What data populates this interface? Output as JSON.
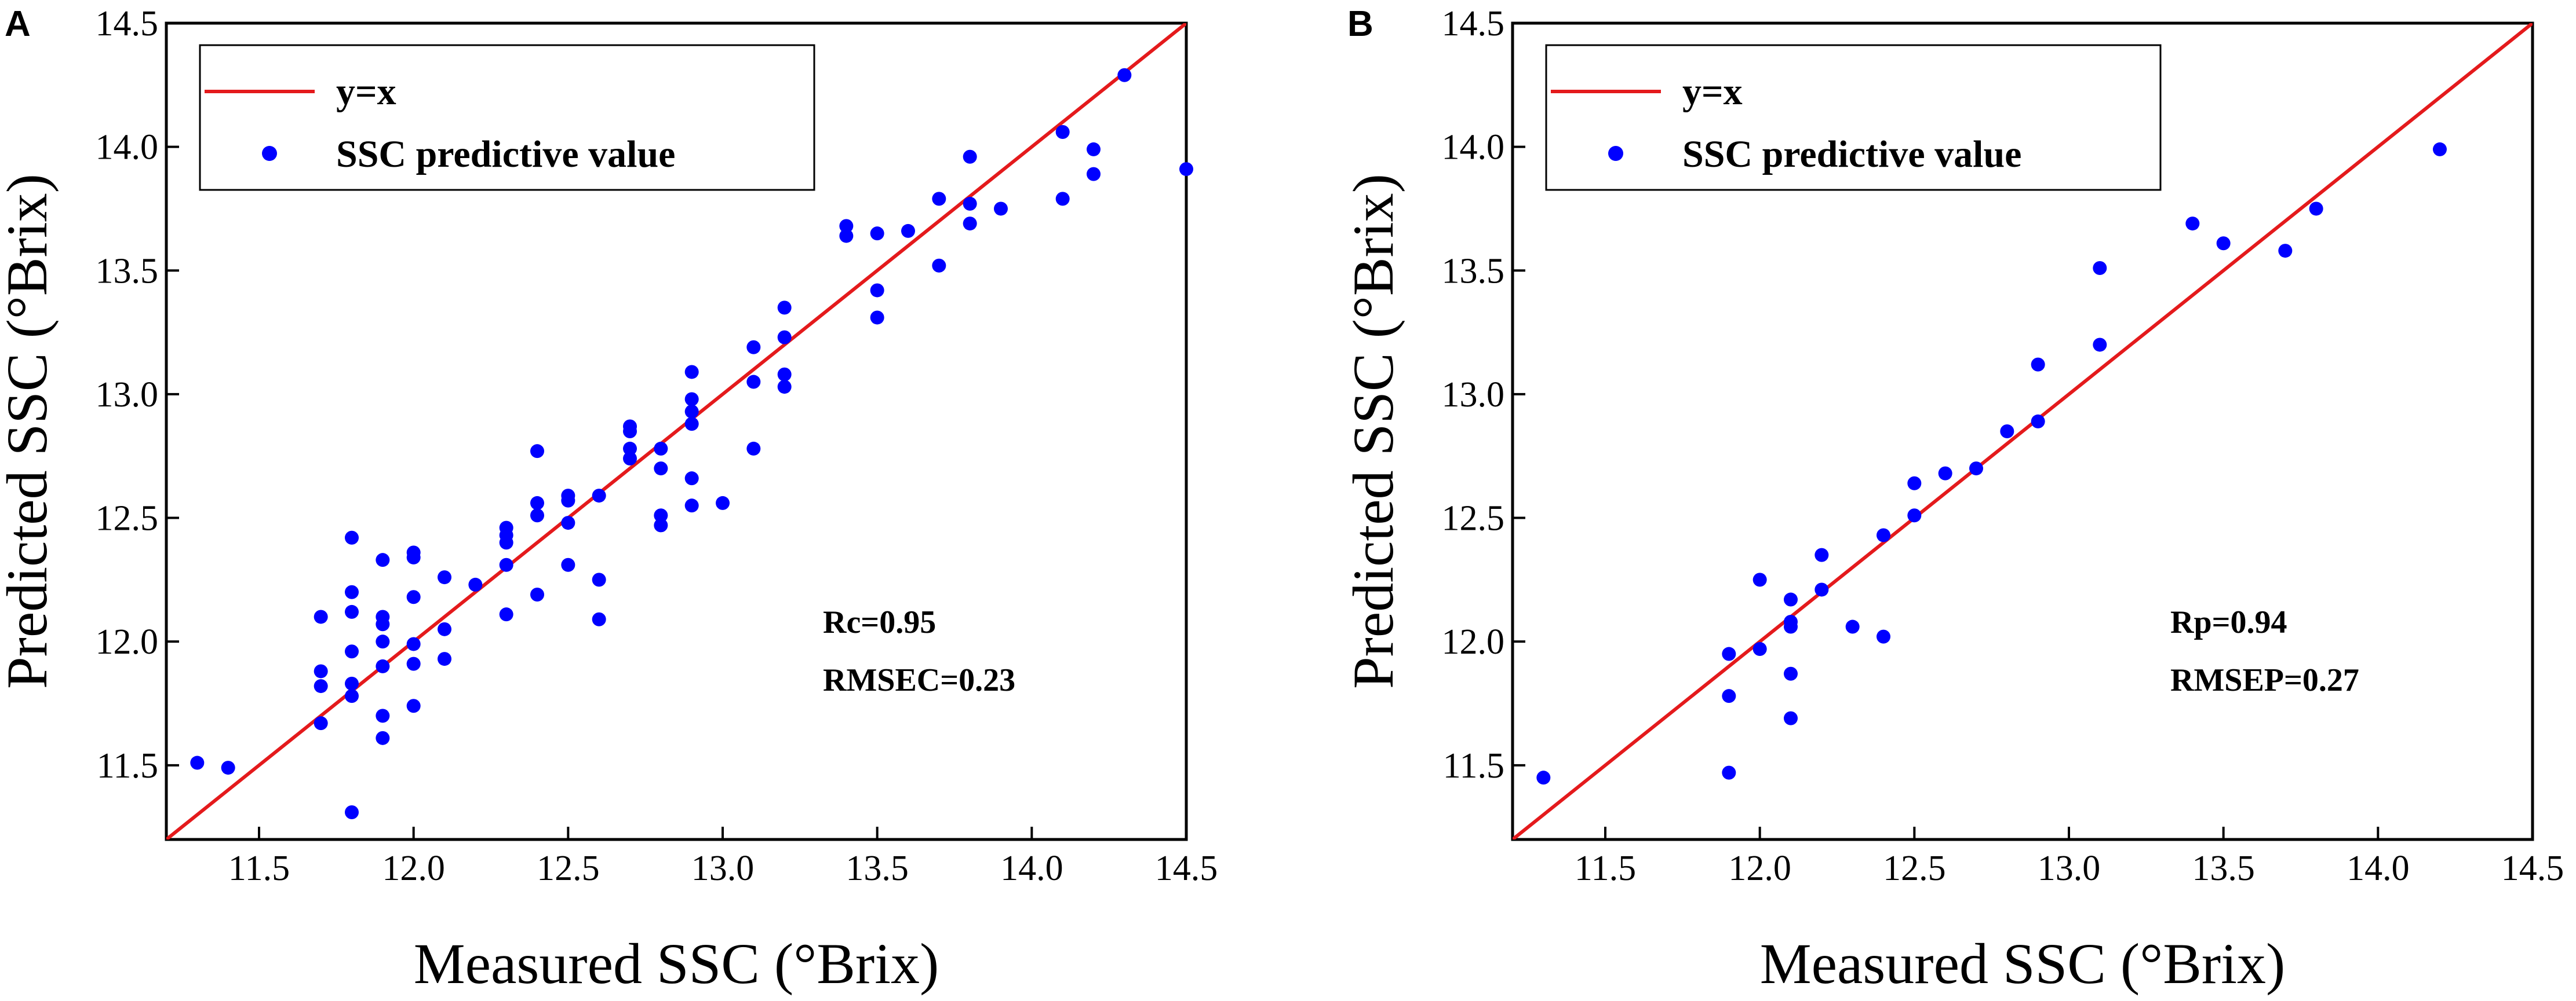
{
  "chart_data": [
    {
      "panel_label": "A",
      "type": "scatter",
      "xlabel": "Measured SSC (°Brix)",
      "ylabel": "Predicted SSC (°Brix)",
      "xlim": [
        11.2,
        14.5
      ],
      "ylim": [
        11.2,
        14.5
      ],
      "xticks": [
        "11.5",
        "12.0",
        "12.5",
        "13.0",
        "13.5",
        "14.0",
        "14.5"
      ],
      "yticks": [
        "11.5",
        "12.0",
        "12.5",
        "13.0",
        "13.5",
        "14.0",
        "14.5"
      ],
      "legend_position": "top-left",
      "series": [
        {
          "name": "y=x",
          "kind": "line",
          "color": "#e41a1c",
          "points": [
            [
              11.2,
              11.2
            ],
            [
              14.5,
              14.5
            ]
          ]
        },
        {
          "name": "SSC predictive value",
          "kind": "scatter",
          "color": "#0000ff",
          "points": [
            [
              11.3,
              11.51
            ],
            [
              11.4,
              11.49
            ],
            [
              11.7,
              11.67
            ],
            [
              11.7,
              11.82
            ],
            [
              11.7,
              11.88
            ],
            [
              11.7,
              12.1
            ],
            [
              11.8,
              11.31
            ],
            [
              11.8,
              11.78
            ],
            [
              11.8,
              11.83
            ],
            [
              11.8,
              11.96
            ],
            [
              11.8,
              12.12
            ],
            [
              11.8,
              12.2
            ],
            [
              11.8,
              12.42
            ],
            [
              11.9,
              11.61
            ],
            [
              11.9,
              11.7
            ],
            [
              11.9,
              11.9
            ],
            [
              11.9,
              12.0
            ],
            [
              11.9,
              12.07
            ],
            [
              11.9,
              12.1
            ],
            [
              11.9,
              12.33
            ],
            [
              12.0,
              11.74
            ],
            [
              12.0,
              11.91
            ],
            [
              12.0,
              11.99
            ],
            [
              12.0,
              12.18
            ],
            [
              12.0,
              12.34
            ],
            [
              12.0,
              12.36
            ],
            [
              12.1,
              11.93
            ],
            [
              12.1,
              12.05
            ],
            [
              12.1,
              12.26
            ],
            [
              12.2,
              12.23
            ],
            [
              12.3,
              12.11
            ],
            [
              12.3,
              12.31
            ],
            [
              12.3,
              12.4
            ],
            [
              12.3,
              12.43
            ],
            [
              12.3,
              12.46
            ],
            [
              12.4,
              12.19
            ],
            [
              12.4,
              12.51
            ],
            [
              12.4,
              12.56
            ],
            [
              12.4,
              12.77
            ],
            [
              12.5,
              12.31
            ],
            [
              12.5,
              12.48
            ],
            [
              12.5,
              12.57
            ],
            [
              12.5,
              12.59
            ],
            [
              12.6,
              12.09
            ],
            [
              12.6,
              12.25
            ],
            [
              12.6,
              12.59
            ],
            [
              12.7,
              12.74
            ],
            [
              12.7,
              12.78
            ],
            [
              12.7,
              12.85
            ],
            [
              12.7,
              12.87
            ],
            [
              12.8,
              12.47
            ],
            [
              12.8,
              12.51
            ],
            [
              12.8,
              12.7
            ],
            [
              12.8,
              12.78
            ],
            [
              12.9,
              12.55
            ],
            [
              12.9,
              12.66
            ],
            [
              12.9,
              12.88
            ],
            [
              12.9,
              12.93
            ],
            [
              12.9,
              12.98
            ],
            [
              12.9,
              13.09
            ],
            [
              13.0,
              12.56
            ],
            [
              13.1,
              12.78
            ],
            [
              13.1,
              13.05
            ],
            [
              13.1,
              13.19
            ],
            [
              13.2,
              13.03
            ],
            [
              13.2,
              13.08
            ],
            [
              13.2,
              13.23
            ],
            [
              13.2,
              13.35
            ],
            [
              13.4,
              13.64
            ],
            [
              13.4,
              13.68
            ],
            [
              13.5,
              13.31
            ],
            [
              13.5,
              13.42
            ],
            [
              13.5,
              13.65
            ],
            [
              13.6,
              13.66
            ],
            [
              13.7,
              13.52
            ],
            [
              13.7,
              13.79
            ],
            [
              13.8,
              13.69
            ],
            [
              13.8,
              13.77
            ],
            [
              13.8,
              13.96
            ],
            [
              13.9,
              13.75
            ],
            [
              14.1,
              13.79
            ],
            [
              14.1,
              14.06
            ],
            [
              14.2,
              13.89
            ],
            [
              14.2,
              13.99
            ],
            [
              14.3,
              14.29
            ],
            [
              14.5,
              13.91
            ]
          ]
        }
      ],
      "annotation_lines": [
        "Rc=0.95",
        "RMSEC=0.23"
      ]
    },
    {
      "panel_label": "B",
      "type": "scatter",
      "xlabel": "Measured SSC (°Brix)",
      "ylabel": "Predicted SSC (°Brix)",
      "xlim": [
        11.2,
        14.5
      ],
      "ylim": [
        11.2,
        14.5
      ],
      "xticks": [
        "11.5",
        "12.0",
        "12.5",
        "13.0",
        "13.5",
        "14.0",
        "14.5"
      ],
      "yticks": [
        "11.5",
        "12.0",
        "12.5",
        "13.0",
        "13.5",
        "14.0",
        "14.5"
      ],
      "legend_position": "top-left",
      "series": [
        {
          "name": "y=x",
          "kind": "line",
          "color": "#e41a1c",
          "points": [
            [
              11.2,
              11.2
            ],
            [
              14.5,
              14.5
            ]
          ]
        },
        {
          "name": "SSC predictive value",
          "kind": "scatter",
          "color": "#0000ff",
          "points": [
            [
              11.3,
              11.45
            ],
            [
              11.9,
              11.47
            ],
            [
              11.9,
              11.78
            ],
            [
              11.9,
              11.95
            ],
            [
              12.0,
              11.97
            ],
            [
              12.0,
              12.25
            ],
            [
              12.1,
              11.69
            ],
            [
              12.1,
              11.87
            ],
            [
              12.1,
              12.06
            ],
            [
              12.1,
              12.08
            ],
            [
              12.1,
              12.17
            ],
            [
              12.2,
              12.21
            ],
            [
              12.2,
              12.35
            ],
            [
              12.3,
              12.06
            ],
            [
              12.4,
              12.02
            ],
            [
              12.4,
              12.43
            ],
            [
              12.5,
              12.51
            ],
            [
              12.5,
              12.64
            ],
            [
              12.6,
              12.68
            ],
            [
              12.7,
              12.7
            ],
            [
              12.8,
              12.85
            ],
            [
              12.9,
              12.89
            ],
            [
              12.9,
              13.12
            ],
            [
              13.1,
              13.2
            ],
            [
              13.1,
              13.51
            ],
            [
              13.4,
              13.69
            ],
            [
              13.5,
              13.61
            ],
            [
              13.7,
              13.58
            ],
            [
              13.8,
              13.75
            ],
            [
              14.2,
              13.99
            ]
          ]
        }
      ],
      "annotation_lines": [
        "Rp=0.94",
        "RMSEP=0.27"
      ]
    }
  ]
}
